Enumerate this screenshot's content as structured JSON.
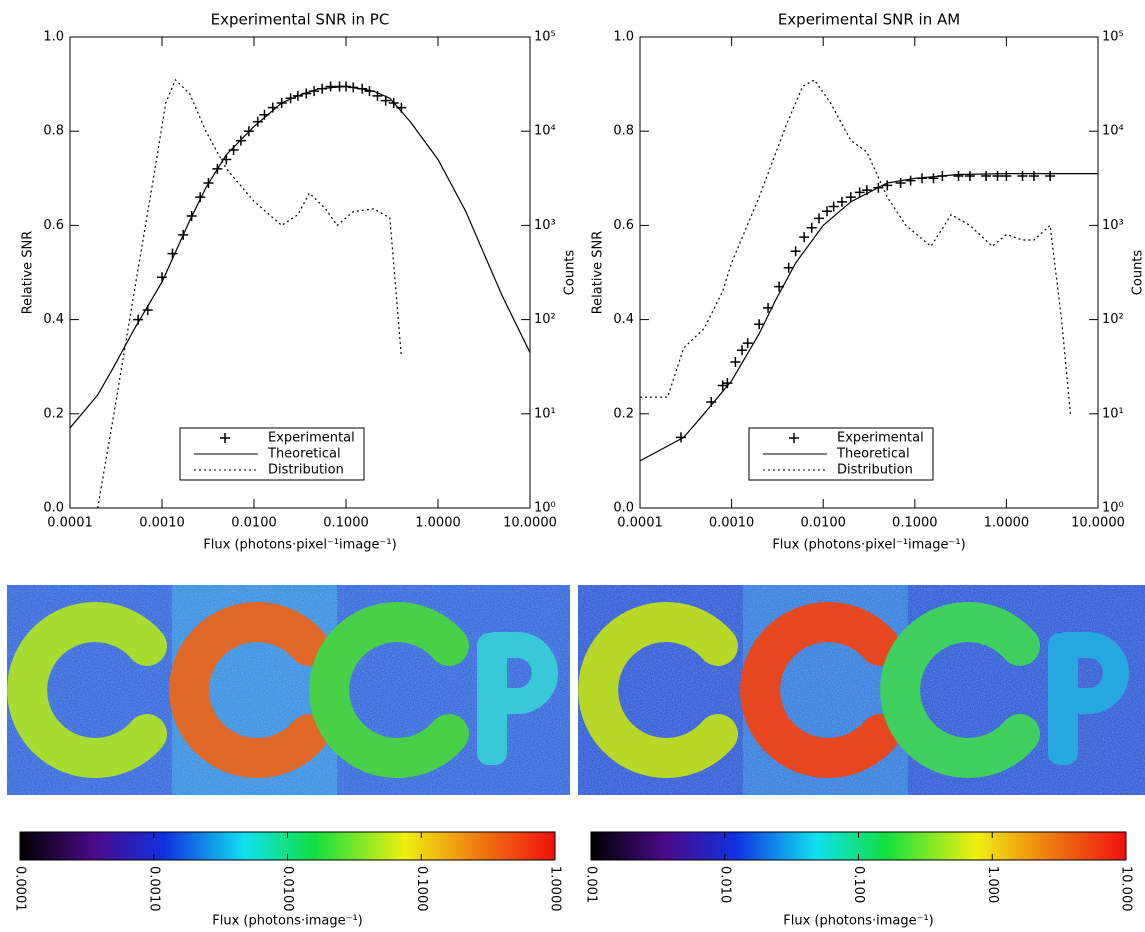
{
  "chart_data": [
    {
      "type": "line",
      "title": "Experimental SNR in PC",
      "xlabel": "Flux (photons·pixel⁻¹image⁻¹)",
      "ylabel": "Relative SNR",
      "y2label": "Counts",
      "xlog": true,
      "y2log": true,
      "legend": "lower center",
      "xlim": [
        0.0001,
        10
      ],
      "xticks": [
        {
          "value": 0.0001,
          "label": "0.0001"
        },
        {
          "value": 0.001,
          "label": "0.0010"
        },
        {
          "value": 0.01,
          "label": "0.0100"
        },
        {
          "value": 0.1,
          "label": "0.1000"
        },
        {
          "value": 1,
          "label": "1.0000"
        },
        {
          "value": 10,
          "label": "10.0000"
        }
      ],
      "ylim": [
        0,
        1
      ],
      "yticks": [
        {
          "value": 0,
          "label": "0.0"
        },
        {
          "value": 0.2,
          "label": "0.2"
        },
        {
          "value": 0.4,
          "label": "0.4"
        },
        {
          "value": 0.6,
          "label": "0.6"
        },
        {
          "value": 0.8,
          "label": "0.8"
        },
        {
          "value": 1,
          "label": "1.0"
        }
      ],
      "y2lim": [
        1,
        100000
      ],
      "y2ticks": [
        {
          "value": 1,
          "label": "10⁰"
        },
        {
          "value": 10,
          "label": "10¹"
        },
        {
          "value": 100,
          "label": "10²"
        },
        {
          "value": 1000,
          "label": "10³"
        },
        {
          "value": 10000,
          "label": "10⁴"
        },
        {
          "value": 100000,
          "label": "10⁵"
        }
      ],
      "series": [
        {
          "name": "Experimental",
          "color": "#000000",
          "marker": "+",
          "x": [
            0.00055,
            0.0007,
            0.001,
            0.0013,
            0.0017,
            0.0021,
            0.0026,
            0.0032,
            0.004,
            0.005,
            0.006,
            0.0072,
            0.0088,
            0.011,
            0.013,
            0.016,
            0.02,
            0.025,
            0.03,
            0.037,
            0.045,
            0.055,
            0.068,
            0.085,
            0.1,
            0.12,
            0.15,
            0.18,
            0.22,
            0.27,
            0.33,
            0.4
          ],
          "values": [
            0.4,
            0.42,
            0.49,
            0.54,
            0.58,
            0.62,
            0.66,
            0.69,
            0.72,
            0.74,
            0.76,
            0.78,
            0.8,
            0.82,
            0.835,
            0.85,
            0.86,
            0.87,
            0.875,
            0.88,
            0.885,
            0.89,
            0.895,
            0.895,
            0.895,
            0.893,
            0.89,
            0.885,
            0.875,
            0.865,
            0.86,
            0.85
          ]
        },
        {
          "name": "Theoretical",
          "color": "#000000",
          "linestyle": "solid",
          "x": [
            0.0001,
            0.0002,
            0.0003,
            0.0005,
            0.001,
            0.002,
            0.003,
            0.005,
            0.01,
            0.02,
            0.03,
            0.05,
            0.1,
            0.2,
            0.3,
            0.5,
            1,
            2,
            3,
            5,
            10
          ],
          "values": [
            0.17,
            0.24,
            0.3,
            0.38,
            0.48,
            0.61,
            0.68,
            0.75,
            0.81,
            0.86,
            0.875,
            0.89,
            0.895,
            0.885,
            0.87,
            0.82,
            0.74,
            0.63,
            0.55,
            0.45,
            0.33
          ]
        },
        {
          "name": "Distribution",
          "color": "#000000",
          "linestyle": "dotted",
          "axis": "y2",
          "x": [
            0.0002,
            0.0003,
            0.0005,
            0.0008,
            0.0011,
            0.0014,
            0.002,
            0.003,
            0.005,
            0.01,
            0.02,
            0.03,
            0.04,
            0.06,
            0.08,
            0.12,
            0.2,
            0.3,
            0.4
          ],
          "values": [
            1,
            10,
            200,
            3000,
            20000,
            35000,
            25000,
            10000,
            4000,
            1800,
            1000,
            1300,
            2200,
            1500,
            1000,
            1400,
            1500,
            1200,
            40
          ]
        }
      ]
    },
    {
      "type": "line",
      "title": "Experimental SNR in AM",
      "xlabel": "Flux (photons·pixel⁻¹image⁻¹)",
      "ylabel": "Relative SNR",
      "y2label": "Counts",
      "xlog": true,
      "y2log": true,
      "legend": "lower center",
      "xlim": [
        0.0001,
        10
      ],
      "xticks": [
        {
          "value": 0.0001,
          "label": "0.0001"
        },
        {
          "value": 0.001,
          "label": "0.0010"
        },
        {
          "value": 0.01,
          "label": "0.0100"
        },
        {
          "value": 0.1,
          "label": "0.1000"
        },
        {
          "value": 1,
          "label": "1.0000"
        },
        {
          "value": 10,
          "label": "10.0000"
        }
      ],
      "ylim": [
        0,
        1
      ],
      "yticks": [
        {
          "value": 0,
          "label": "0.0"
        },
        {
          "value": 0.2,
          "label": "0.2"
        },
        {
          "value": 0.4,
          "label": "0.4"
        },
        {
          "value": 0.6,
          "label": "0.6"
        },
        {
          "value": 0.8,
          "label": "0.8"
        },
        {
          "value": 1,
          "label": "1.0"
        }
      ],
      "y2lim": [
        1,
        100000
      ],
      "y2ticks": [
        {
          "value": 1,
          "label": "10⁰"
        },
        {
          "value": 10,
          "label": "10¹"
        },
        {
          "value": 100,
          "label": "10²"
        },
        {
          "value": 1000,
          "label": "10³"
        },
        {
          "value": 10000,
          "label": "10⁴"
        },
        {
          "value": 100000,
          "label": "10⁵"
        }
      ],
      "series": [
        {
          "name": "Experimental",
          "color": "#000000",
          "marker": "+",
          "x": [
            0.00028,
            0.0006,
            0.0008,
            0.0009,
            0.0011,
            0.0013,
            0.0015,
            0.002,
            0.0025,
            0.0033,
            0.0042,
            0.005,
            0.0062,
            0.0075,
            0.009,
            0.011,
            0.013,
            0.016,
            0.02,
            0.025,
            0.03,
            0.04,
            0.05,
            0.07,
            0.09,
            0.12,
            0.16,
            0.2,
            0.3,
            0.4,
            0.6,
            0.8,
            1,
            1.5,
            2,
            3
          ],
          "values": [
            0.15,
            0.225,
            0.26,
            0.265,
            0.31,
            0.335,
            0.35,
            0.39,
            0.425,
            0.47,
            0.51,
            0.545,
            0.575,
            0.595,
            0.615,
            0.63,
            0.64,
            0.65,
            0.66,
            0.67,
            0.675,
            0.68,
            0.685,
            0.69,
            0.695,
            0.7,
            0.7,
            0.705,
            0.705,
            0.705,
            0.705,
            0.705,
            0.705,
            0.705,
            0.705,
            0.705
          ]
        },
        {
          "name": "Theoretical",
          "color": "#000000",
          "linestyle": "solid",
          "x": [
            0.0001,
            0.0003,
            0.0005,
            0.001,
            0.002,
            0.003,
            0.005,
            0.01,
            0.02,
            0.05,
            0.1,
            0.3,
            1,
            10
          ],
          "values": [
            0.1,
            0.15,
            0.2,
            0.27,
            0.37,
            0.44,
            0.52,
            0.6,
            0.65,
            0.69,
            0.7,
            0.708,
            0.71,
            0.71
          ]
        },
        {
          "name": "Distribution",
          "color": "#000000",
          "linestyle": "dotted",
          "axis": "y2",
          "x": [
            0.0001,
            0.0002,
            0.0003,
            0.0005,
            0.0008,
            0.001,
            0.002,
            0.004,
            0.006,
            0.008,
            0.012,
            0.02,
            0.03,
            0.05,
            0.08,
            0.15,
            0.25,
            0.4,
            0.7,
            1,
            1.5,
            2,
            3,
            4,
            5
          ],
          "values": [
            15,
            15,
            50,
            80,
            200,
            400,
            2000,
            12000,
            30000,
            35000,
            20000,
            8000,
            6000,
            2000,
            1000,
            600,
            1300,
            1000,
            600,
            800,
            700,
            700,
            1000,
            100,
            10
          ]
        }
      ]
    },
    {
      "type": "colorbar",
      "xlabel": "Flux (photons·image⁻¹)",
      "xlog": true,
      "xlim": [
        0.0001,
        1
      ],
      "xticks": [
        {
          "value": 0.0001,
          "label": "0.0001"
        },
        {
          "value": 0.001,
          "label": "0.0010"
        },
        {
          "value": 0.01,
          "label": "0.0100"
        },
        {
          "value": 0.1,
          "label": "0.1000"
        },
        {
          "value": 1,
          "label": "1.0000"
        }
      ]
    },
    {
      "type": "colorbar",
      "xlabel": "Flux (photons·image⁻¹)",
      "xlog": true,
      "xlim": [
        0.001,
        10
      ],
      "xticks": [
        {
          "value": 0.001,
          "label": "0.001"
        },
        {
          "value": 0.01,
          "label": "0.010"
        },
        {
          "value": 0.1,
          "label": "0.100"
        },
        {
          "value": 1,
          "label": "1.000"
        },
        {
          "value": 10,
          "label": "10.000"
        }
      ]
    }
  ]
}
